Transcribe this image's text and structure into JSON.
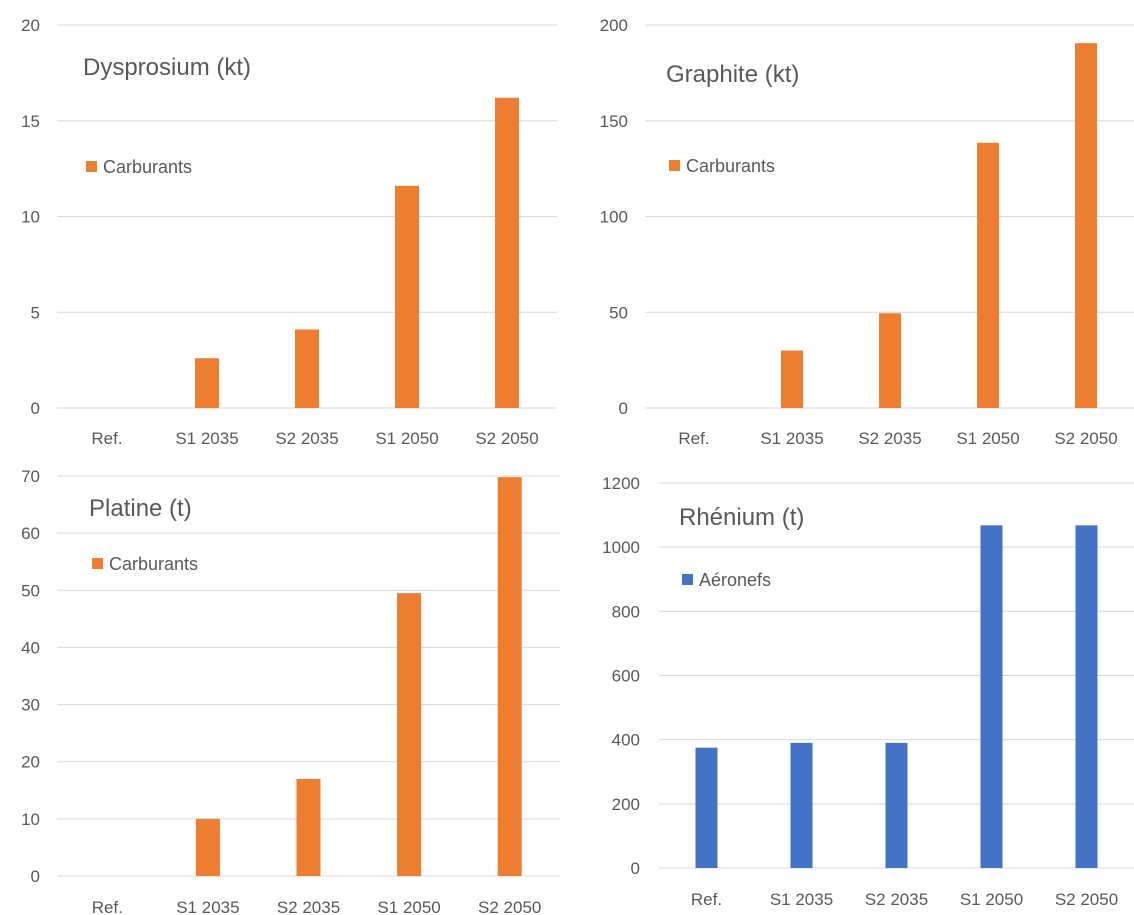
{
  "chart_data": [
    {
      "type": "bar",
      "title": "Dysprosium (kt)",
      "categories": [
        "Ref.",
        "S1 2035",
        "S2 2035",
        "S1 2050",
        "S2 2050"
      ],
      "series": [
        {
          "name": "Carburants",
          "values": [
            0,
            2.6,
            4.1,
            11.6,
            16.2
          ]
        }
      ],
      "yticks": [
        "0",
        "5",
        "10",
        "15",
        "20"
      ],
      "ylim": [
        0,
        20
      ],
      "grid": true,
      "legend_position": "upper-left",
      "color": "#ED7D31"
    },
    {
      "type": "bar",
      "title": "Graphite (kt)",
      "categories": [
        "Ref.",
        "S1 2035",
        "S2 2035",
        "S1 2050",
        "S2 2050"
      ],
      "series": [
        {
          "name": "Carburants",
          "values": [
            0,
            30,
            49.5,
            138.5,
            190.5
          ]
        }
      ],
      "yticks": [
        "0",
        "50",
        "100",
        "150",
        "200"
      ],
      "ylim": [
        0,
        200
      ],
      "grid": true,
      "legend_position": "upper-left",
      "color": "#ED7D31"
    },
    {
      "type": "bar",
      "title": "Platine (t)",
      "categories": [
        "Ref.",
        "S1 2035",
        "S2 2035",
        "S1 2050",
        "S2 2050"
      ],
      "series": [
        {
          "name": "Carburants",
          "values": [
            0,
            10,
            17,
            49.5,
            69.8
          ]
        }
      ],
      "yticks": [
        "0",
        "10",
        "20",
        "30",
        "40",
        "50",
        "60",
        "70"
      ],
      "ylim": [
        0,
        70
      ],
      "grid": true,
      "legend_position": "upper-left",
      "color": "#ED7D31"
    },
    {
      "type": "bar",
      "title": "Rhénium (t)",
      "categories": [
        "Ref.",
        "S1 2035",
        "S2 2035",
        "S1 2050",
        "S2 2050"
      ],
      "series": [
        {
          "name": "Aéronefs",
          "values": [
            375,
            390,
            390,
            1068,
            1068
          ]
        }
      ],
      "yticks": [
        "0",
        "200",
        "400",
        "600",
        "800",
        "1000",
        "1200"
      ],
      "ylim": [
        0,
        1200
      ],
      "grid": true,
      "legend_position": "upper-left",
      "color": "#4472C4"
    }
  ]
}
